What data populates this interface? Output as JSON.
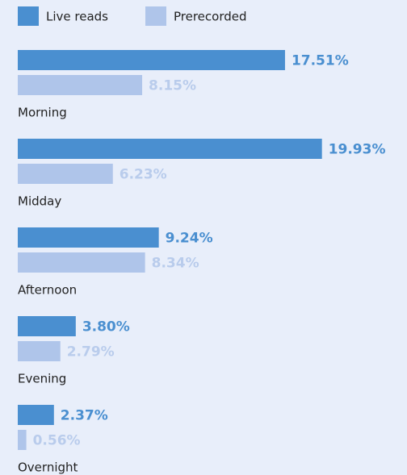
{
  "chart_data": {
    "type": "bar",
    "orientation": "horizontal",
    "categories": [
      "Morning",
      "Midday",
      "Afternoon",
      "Evening",
      "Overnight"
    ],
    "series": [
      {
        "name": "Live reads",
        "color": "#4a8fd0",
        "label_color": "#4a8fd0",
        "values": [
          17.51,
          19.93,
          9.24,
          3.8,
          2.37
        ],
        "value_labels": [
          "17.51%",
          "19.93%",
          "9.24%",
          "3.80%",
          "2.37%"
        ]
      },
      {
        "name": "Prerecorded",
        "color": "#afc5ea",
        "label_color": "#b9ccec",
        "values": [
          8.15,
          6.23,
          8.34,
          2.79,
          0.56
        ],
        "value_labels": [
          "8.15%",
          "6.23%",
          "8.34%",
          "2.79%",
          "0.56%"
        ]
      }
    ],
    "legend": "top-left"
  }
}
